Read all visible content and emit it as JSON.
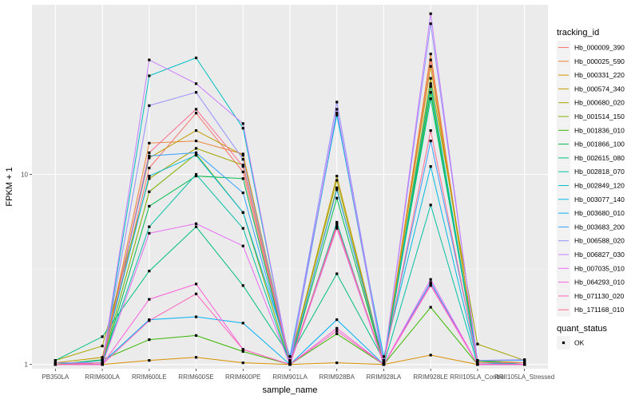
{
  "chart_data": {
    "type": "line",
    "x_title": "sample_name",
    "y_title": "FPKM + 1",
    "y_scale": "log10",
    "y_ticks": [
      1,
      10
    ],
    "ylim": [
      0.95,
      78
    ],
    "grid": true,
    "categories": [
      "PB350LA",
      "RRIM600LA",
      "RRIM600LE",
      "RRIM600SE",
      "RRIM600PE",
      "RRIM901LA",
      "RRIM928BA",
      "RRIM928LA",
      "RRIM928LE",
      "RRII105LA_Control",
      "RRII105LA_Stressed"
    ],
    "legend_title": "tracking_id",
    "legend_position": "right",
    "series": [
      {
        "name": "Hb_000009_390",
        "color": "#F8766D",
        "values": [
          1.0,
          1.02,
          10.8,
          21.0,
          10.3,
          1.0,
          5.5,
          1.0,
          40.0,
          1.02,
          1.0
        ]
      },
      {
        "name": "Hb_000025_590",
        "color": "#EA8331",
        "values": [
          1.0,
          1.05,
          14.6,
          15.0,
          12.8,
          1.0,
          5.3,
          1.0,
          43.0,
          1.0,
          1.0
        ]
      },
      {
        "name": "Hb_000331_220",
        "color": "#D89000",
        "values": [
          1.02,
          1.0,
          1.05,
          1.09,
          1.02,
          1.0,
          1.02,
          1.0,
          1.12,
          1.0,
          1.0
        ]
      },
      {
        "name": "Hb_000574_340",
        "color": "#C09B00",
        "values": [
          1.02,
          1.09,
          12.2,
          17.0,
          12.6,
          1.05,
          9.8,
          1.02,
          37.0,
          1.05,
          1.02
        ]
      },
      {
        "name": "Hb_000680_020",
        "color": "#A3A500",
        "values": [
          1.05,
          1.25,
          9.5,
          13.7,
          11.2,
          1.04,
          9.3,
          1.0,
          32.0,
          1.28,
          1.05
        ]
      },
      {
        "name": "Hb_001514_150",
        "color": "#7CAE00",
        "values": [
          1.0,
          1.02,
          8.1,
          12.8,
          6.3,
          1.0,
          8.5,
          1.0,
          29.0,
          1.04,
          1.0
        ]
      },
      {
        "name": "Hb_001836_010",
        "color": "#39B600",
        "values": [
          1.0,
          1.06,
          1.35,
          1.42,
          1.17,
          1.0,
          1.45,
          1.0,
          2.0,
          1.0,
          1.0
        ]
      },
      {
        "name": "Hb_001866_100",
        "color": "#00BB4E",
        "values": [
          1.0,
          1.0,
          6.8,
          9.8,
          9.5,
          1.0,
          7.5,
          1.0,
          27.0,
          1.0,
          1.0
        ]
      },
      {
        "name": "Hb_002615_080",
        "color": "#00BF7D",
        "values": [
          1.05,
          1.4,
          3.1,
          5.3,
          2.6,
          1.1,
          3.0,
          1.05,
          25.0,
          1.05,
          1.0
        ]
      },
      {
        "name": "Hb_002818_070",
        "color": "#00C1A3",
        "values": [
          1.0,
          1.02,
          5.3,
          10.0,
          5.2,
          1.0,
          5.6,
          1.0,
          6.9,
          1.0,
          1.0
        ]
      },
      {
        "name": "Hb_002849_120",
        "color": "#00BFC4",
        "values": [
          1.0,
          1.0,
          33.0,
          41.0,
          17.5,
          1.0,
          21.0,
          1.0,
          30.0,
          1.0,
          1.0
        ]
      },
      {
        "name": "Hb_003077_140",
        "color": "#00BAE0",
        "values": [
          1.0,
          1.05,
          9.8,
          12.6,
          6.3,
          1.1,
          20.5,
          1.1,
          11.0,
          1.02,
          1.0
        ]
      },
      {
        "name": "Hb_003680_010",
        "color": "#00B0F6",
        "values": [
          1.0,
          1.02,
          1.72,
          1.78,
          1.65,
          1.0,
          1.72,
          1.0,
          2.7,
          1.0,
          1.0
        ]
      },
      {
        "name": "Hb_003683_200",
        "color": "#35A2FF",
        "values": [
          1.0,
          1.02,
          12.5,
          13.0,
          8.0,
          1.02,
          8.3,
          1.05,
          15.0,
          1.05,
          1.05
        ]
      },
      {
        "name": "Hb_006588_020",
        "color": "#9590FF",
        "values": [
          1.02,
          1.02,
          23.0,
          27.0,
          12.0,
          1.05,
          24.0,
          1.02,
          62.0,
          1.05,
          1.06
        ]
      },
      {
        "name": "Hb_006827_030",
        "color": "#C77CFF",
        "values": [
          1.0,
          1.0,
          40.0,
          30.0,
          18.5,
          1.0,
          22.0,
          1.0,
          70.0,
          1.0,
          1.0
        ]
      },
      {
        "name": "Hb_007035_010",
        "color": "#E76BF3",
        "values": [
          1.0,
          1.0,
          4.9,
          5.5,
          4.2,
          1.0,
          5.2,
          1.0,
          2.8,
          1.0,
          1.0
        ]
      },
      {
        "name": "Hb_064293_010",
        "color": "#FA62DB",
        "values": [
          1.0,
          1.0,
          2.2,
          2.65,
          1.2,
          1.0,
          1.55,
          1.0,
          2.65,
          1.0,
          1.0
        ]
      },
      {
        "name": "Hb_071130_020",
        "color": "#FF62BC",
        "values": [
          1.0,
          1.0,
          1.7,
          2.35,
          1.2,
          1.0,
          1.5,
          1.0,
          2.6,
          1.0,
          1.0
        ]
      },
      {
        "name": "Hb_171168_010",
        "color": "#FF6C91",
        "values": [
          1.0,
          1.02,
          13.0,
          22.0,
          11.0,
          1.02,
          5.4,
          1.02,
          17.0,
          1.02,
          1.02
        ]
      }
    ],
    "shape_legend": {
      "title": "quant_status",
      "entries": [
        {
          "label": "OK",
          "shape": "square"
        }
      ]
    }
  }
}
